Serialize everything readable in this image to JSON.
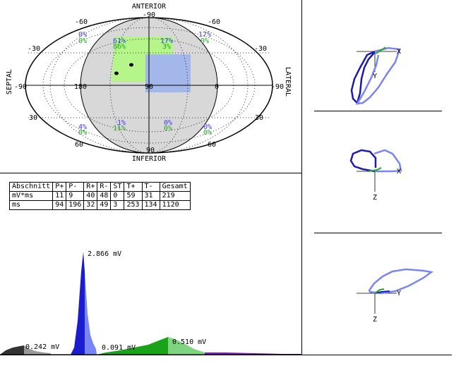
{
  "polar": {
    "labels": {
      "anterior": "ANTERIOR",
      "inferior": "INFERIOR",
      "septal": "SEPTAL",
      "lateral": "LATERAL"
    },
    "ticks": {
      "top_center": "-90",
      "top_left": "-60",
      "top_right": "-60",
      "left_upper": "-30",
      "right_upper": "-30",
      "far_left": "-90",
      "far_right": "-90",
      "mid_180": "180",
      "mid_90": "90",
      "mid_0": "0",
      "left_lower": "30",
      "right_lower": "30",
      "bottom_left": "60",
      "bottom_right": "60",
      "bottom_center": "90"
    },
    "percentages": {
      "ul_blue": "0%",
      "ul_green": "0%",
      "uc_blue": "61%",
      "uc_green": "86%",
      "ucr_blue": "17%",
      "ucr_green": "3%",
      "ur_blue": "17%",
      "ur_green": "0%",
      "lc_blue": "1%",
      "lc_green": "11%",
      "ll_blue": "4%",
      "ll_green": "0%",
      "lcr_blue": "0%",
      "lcr_green": "0%",
      "lr_blue": "0%",
      "lr_green": "0%"
    },
    "colors": {
      "blue_text": "#3a3aff",
      "green_text": "#22aa22",
      "green_area": "#b6f58a",
      "blue_area": "#a4b7ea",
      "sphere": "#d8d8d8"
    }
  },
  "table": {
    "headers": [
      "Abschnitt",
      "P+",
      "P-",
      "R+",
      "R-",
      "ST",
      "T+",
      "T-",
      "Gesamt"
    ],
    "rows": [
      [
        "mV*ms",
        "11",
        "9",
        "40",
        "48",
        "0",
        "59",
        "31",
        "219"
      ],
      [
        "ms",
        "94",
        "196",
        "32",
        "49",
        "3",
        "253",
        "134",
        "1120"
      ]
    ]
  },
  "spectrum": {
    "peak_labels": {
      "main": "2.866 mV",
      "p": "0.242 mV",
      "st": "0.091 mV",
      "t": "0.510 mV"
    }
  },
  "loops": {
    "axis_x": "X",
    "axis_y": "Y",
    "axis_z": "Z"
  }
}
